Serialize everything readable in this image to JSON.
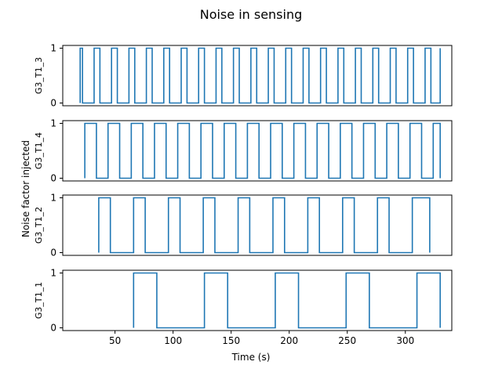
{
  "chart_data": {
    "type": "line",
    "drawstyle": "steps-post",
    "title": "Noise in sensing",
    "xlabel": "Time (s)",
    "ylabel": "Noise factor injected",
    "xlim": [
      5,
      340
    ],
    "ylim": [
      -0.05,
      1.05
    ],
    "xticks": [
      50,
      100,
      150,
      200,
      250,
      300
    ],
    "yticks": [
      0,
      1
    ],
    "color": "#1f77b4",
    "panels": [
      {
        "name": "G3_T1_3",
        "period": 15,
        "start": 20,
        "end": 330,
        "x": [
          20,
          22,
          27,
          32,
          37,
          42,
          47,
          52,
          57,
          62,
          67,
          72,
          77,
          82,
          87,
          92,
          97,
          102,
          107,
          112,
          117,
          122,
          127,
          132,
          137,
          142,
          147,
          152,
          157,
          162,
          167,
          172,
          177,
          182,
          187,
          192,
          197,
          202,
          207,
          212,
          217,
          222,
          227,
          232,
          237,
          242,
          247,
          252,
          257,
          262,
          267,
          272,
          277,
          282,
          287,
          292,
          297,
          302,
          307,
          312,
          317,
          322,
          327,
          330
        ],
        "y": [
          1,
          0,
          0,
          1,
          0,
          0,
          1,
          0,
          0,
          1,
          0,
          0,
          1,
          0,
          0,
          1,
          0,
          0,
          1,
          0,
          0,
          1,
          0,
          0,
          1,
          0,
          0,
          1,
          0,
          0,
          1,
          0,
          0,
          1,
          0,
          0,
          1,
          0,
          0,
          1,
          0,
          0,
          1,
          0,
          0,
          1,
          0,
          0,
          1,
          0,
          0,
          1,
          0,
          0,
          1,
          0,
          0,
          1,
          0,
          0,
          1,
          0,
          0,
          1
        ]
      },
      {
        "name": "G3_T1_4",
        "period": 20,
        "start": 24,
        "end": 330,
        "x": [
          24,
          34,
          44,
          54,
          64,
          74,
          84,
          94,
          104,
          114,
          124,
          134,
          144,
          154,
          164,
          174,
          184,
          194,
          204,
          214,
          224,
          234,
          244,
          254,
          264,
          274,
          284,
          294,
          304,
          314,
          324,
          330
        ],
        "y": [
          1,
          0,
          1,
          0,
          1,
          0,
          1,
          0,
          1,
          0,
          1,
          0,
          1,
          0,
          1,
          0,
          1,
          0,
          1,
          0,
          1,
          0,
          1,
          0,
          1,
          0,
          1,
          0,
          1,
          0,
          1,
          1
        ]
      },
      {
        "name": "G3_T1_2",
        "period": 30,
        "start": 36,
        "end": 321,
        "x": [
          36,
          46,
          66,
          76,
          96,
          106,
          126,
          136,
          156,
          166,
          186,
          196,
          216,
          226,
          246,
          256,
          276,
          286,
          306,
          316,
          321
        ],
        "y": [
          1,
          0,
          1,
          0,
          1,
          0,
          1,
          0,
          1,
          0,
          1,
          0,
          1,
          0,
          1,
          0,
          1,
          0,
          1,
          1,
          1
        ]
      },
      {
        "name": "G3_T1_1",
        "period": 61,
        "start": 66,
        "end": 330,
        "x": [
          66,
          86,
          127,
          147,
          188,
          208,
          249,
          269,
          310,
          330
        ],
        "y": [
          1,
          0,
          1,
          0,
          1,
          0,
          1,
          0,
          1,
          1
        ]
      }
    ]
  }
}
